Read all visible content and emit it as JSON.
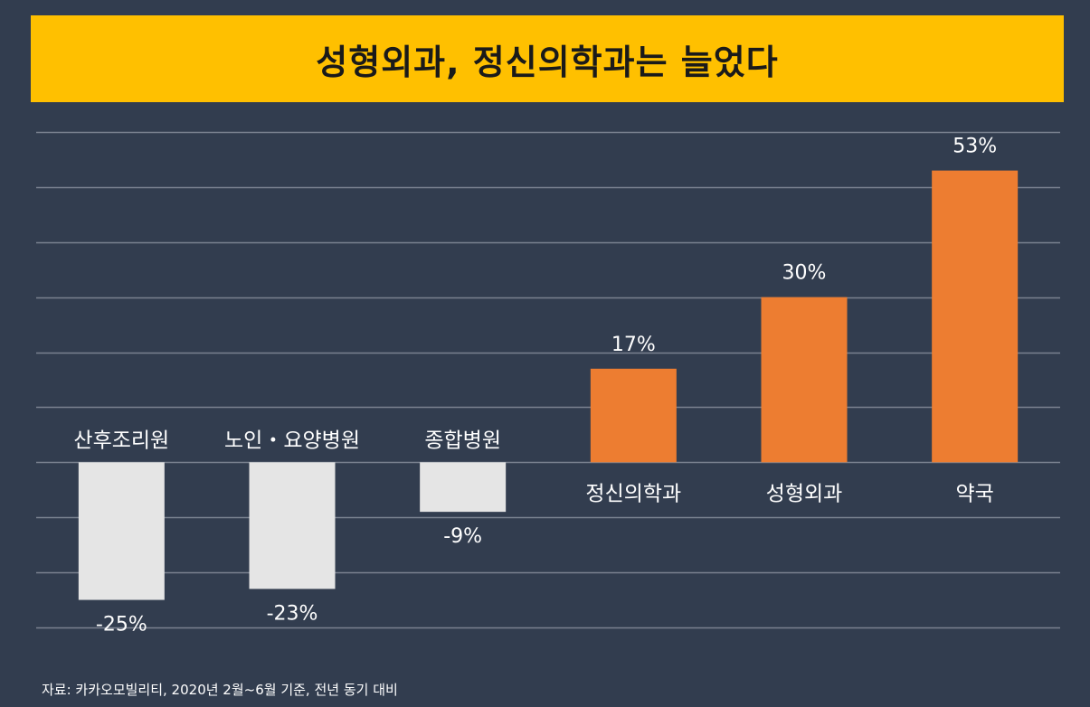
{
  "title": "성형외과, 정신의학과는 늘었다",
  "source": "자료: 카카오모빌리티, 2020년 2월~6월 기준, 전년 동기 대비",
  "colors": {
    "background": "#323d4f",
    "banner": "#ffc000",
    "positive": "#ed7d31",
    "negative": "#e5e5e5",
    "grid": "#7a8290",
    "text": "#ffffff"
  },
  "chart_data": {
    "type": "bar",
    "categories": [
      "산후조리원",
      "노인・요양병원",
      "종합병원",
      "정신의학과",
      "성형외과",
      "약국"
    ],
    "values": [
      -25,
      -23,
      -9,
      17,
      30,
      53
    ],
    "value_labels": [
      "-25%",
      "-23%",
      "-9%",
      "17%",
      "30%",
      "53%"
    ],
    "ylim": [
      -30,
      60
    ],
    "grid": true,
    "legend": "none"
  }
}
